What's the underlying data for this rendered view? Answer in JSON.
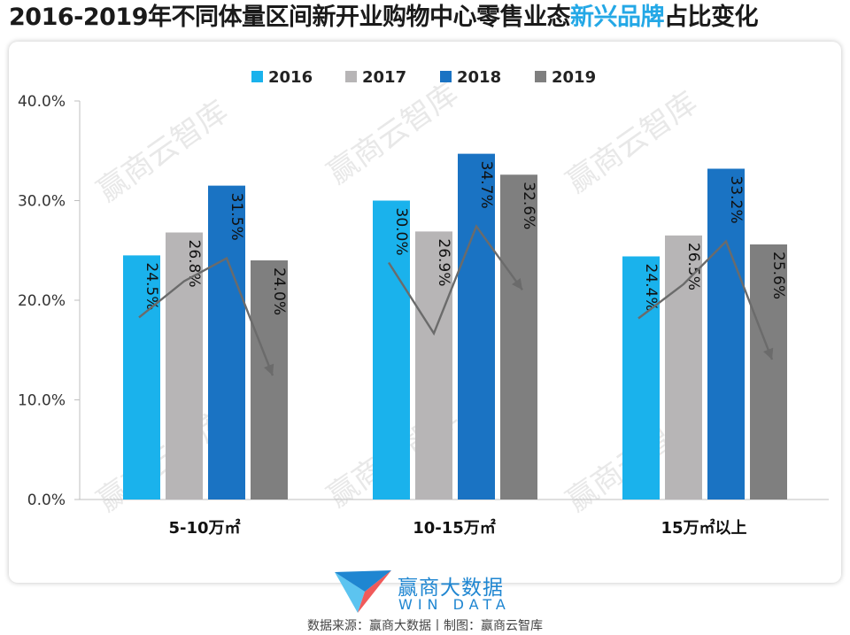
{
  "title": {
    "prefix": "2016-2019年不同体量区间新开业购物中心零售业态",
    "highlight": "新兴品牌",
    "suffix": "占比变化"
  },
  "colors": {
    "title_highlight": "#24a8e6",
    "series": [
      "#1ab2ec",
      "#b7b5b6",
      "#1a73c3",
      "#7f7f7f"
    ],
    "trend_line": "#6b6b6b",
    "brand": "#1f86d1"
  },
  "watermark": "赢商云智库",
  "logo": {
    "name": "赢商大数据",
    "sub": "WIN DATA"
  },
  "source_text": "数据来源：赢商大数据丨制图：赢商云智库",
  "chart_data": {
    "type": "bar",
    "categories": [
      "5-10万㎡",
      "10-15万㎡",
      "15万㎡以上"
    ],
    "series": [
      {
        "name": "2016",
        "values": [
          24.5,
          30.0,
          24.4
        ]
      },
      {
        "name": "2017",
        "values": [
          26.8,
          26.9,
          26.5
        ]
      },
      {
        "name": "2018",
        "values": [
          31.5,
          34.7,
          33.2
        ]
      },
      {
        "name": "2019",
        "values": [
          24.0,
          32.6,
          25.6
        ]
      }
    ],
    "data_labels": [
      [
        "24.5%",
        "26.8%",
        "31.5%",
        "24.0%"
      ],
      [
        "30.0%",
        "26.9%",
        "34.7%",
        "32.6%"
      ],
      [
        "24.4%",
        "26.5%",
        "33.2%",
        "25.6%"
      ]
    ],
    "yticks": [
      "0.0%",
      "10.0%",
      "20.0%",
      "30.0%",
      "40.0%"
    ],
    "ylim": [
      0,
      40
    ],
    "legend_position": "top",
    "grid": false
  }
}
